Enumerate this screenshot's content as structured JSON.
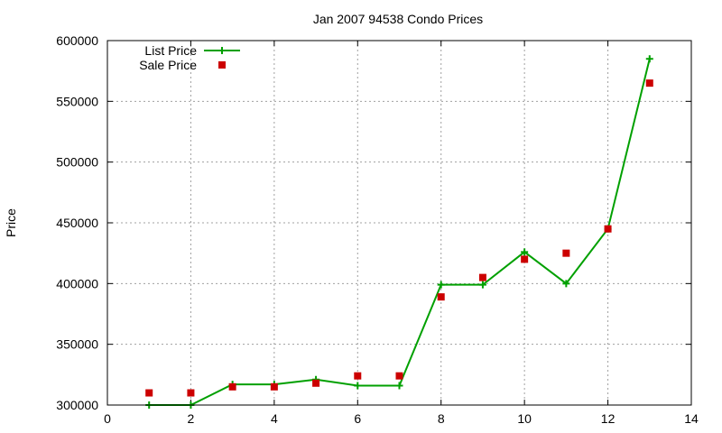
{
  "chart_data": {
    "type": "line",
    "title": "Jan 2007 94538 Condo Prices",
    "xlabel": "",
    "ylabel": "Price",
    "xlim": [
      0,
      14
    ],
    "ylim": [
      300000,
      600000
    ],
    "xticks": [
      0,
      2,
      4,
      6,
      8,
      10,
      12,
      14
    ],
    "yticks": [
      300000,
      350000,
      400000,
      450000,
      500000,
      550000,
      600000
    ],
    "grid": true,
    "legend_position": "top-left",
    "series": [
      {
        "name": "List Price",
        "style": "line-with-plus-markers",
        "color": "#00a000",
        "x": [
          1,
          2,
          3,
          4,
          5,
          6,
          7,
          8,
          9,
          10,
          11,
          12,
          13
        ],
        "y": [
          300000,
          300000,
          317000,
          317000,
          321000,
          316000,
          316000,
          399000,
          399000,
          426000,
          400000,
          445000,
          585000
        ]
      },
      {
        "name": "Sale Price",
        "style": "square-markers",
        "color": "#cc0000",
        "x": [
          1,
          2,
          3,
          4,
          5,
          6,
          7,
          8,
          9,
          10,
          11,
          12,
          13
        ],
        "y": [
          310000,
          310000,
          315000,
          315000,
          318000,
          324000,
          324000,
          389000,
          405000,
          420000,
          425000,
          445000,
          565000
        ]
      }
    ]
  }
}
